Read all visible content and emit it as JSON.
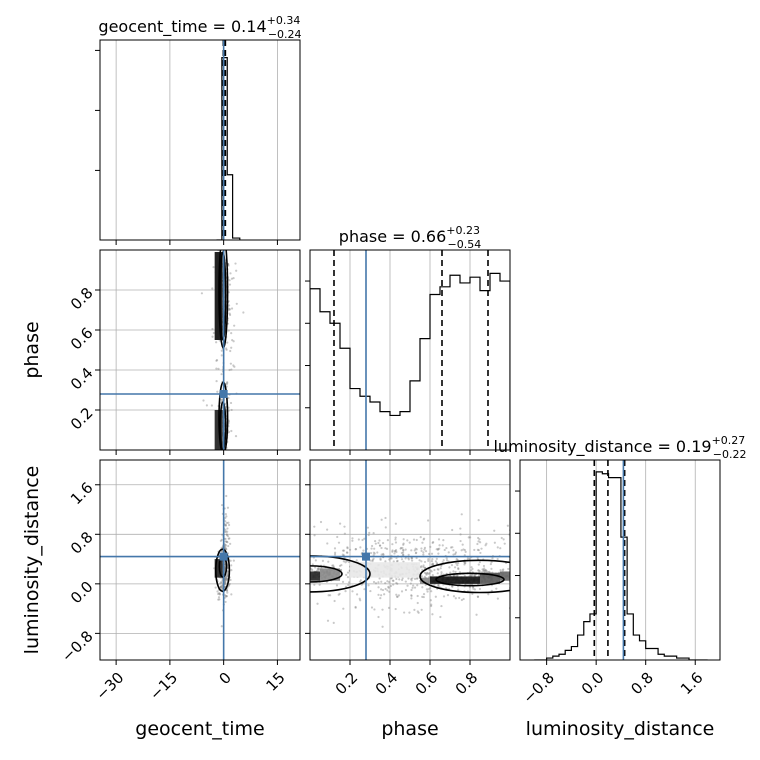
{
  "chart_data": {
    "type": "corner",
    "parameters": [
      "geocent_time",
      "phase",
      "luminosity_distance"
    ],
    "truth": {
      "geocent_time": 0.0,
      "phase": 0.28,
      "luminosity_distance": 0.44,
      "color": "#4477aa"
    },
    "titles": {
      "geocent_time": {
        "prefix": "geocent_time = 0.14",
        "plus": "+0.34",
        "minus": "−0.24"
      },
      "phase": {
        "prefix": "phase = 0.66",
        "plus": "+0.23",
        "minus": "−0.54"
      },
      "luminosity_distance": {
        "prefix": "luminosity_distance = 0.19",
        "plus": "+0.27",
        "minus": "−0.22"
      }
    },
    "axis_labels": {
      "geocent_time": "geocent_time",
      "phase": "phase",
      "luminosity_distance": "luminosity_distance"
    },
    "ranges": {
      "geocent_time": [
        -34.5,
        21.3
      ],
      "phase": [
        0.0,
        1.0
      ],
      "luminosity_distance": [
        -1.23,
        2.0
      ]
    },
    "ticks": {
      "geocent_time": {
        "values": [
          -30,
          -15,
          0,
          15
        ],
        "labels": [
          "−30",
          "−15",
          "0",
          "15"
        ]
      },
      "phase": {
        "values": [
          0.2,
          0.4,
          0.6,
          0.8
        ],
        "labels": [
          "0.2",
          "0.4",
          "0.6",
          "0.8"
        ]
      },
      "luminosity_distance": {
        "values": [
          -0.8,
          0.0,
          0.8,
          1.6
        ],
        "labels": [
          "−0.8",
          "0.0",
          "0.8",
          "1.6"
        ]
      }
    },
    "quantile_lines": {
      "geocent_time": [
        -0.1,
        0.14,
        0.48
      ],
      "phase": [
        0.12,
        0.66,
        0.89
      ],
      "luminosity_distance": [
        -0.03,
        0.19,
        0.46
      ]
    },
    "histograms": {
      "geocent_time": {
        "edges": [
          -2.0,
          -0.5,
          1.0,
          2.5,
          4.5
        ],
        "counts": [
          0.0,
          0.95,
          0.34,
          0.01
        ]
      },
      "phase": {
        "edges": [
          0.0,
          0.05,
          0.1,
          0.15,
          0.2,
          0.25,
          0.3,
          0.35,
          0.4,
          0.45,
          0.5,
          0.55,
          0.6,
          0.65,
          0.7,
          0.75,
          0.8,
          0.85,
          0.9,
          0.95,
          1.0
        ],
        "counts": [
          0.84,
          0.72,
          0.66,
          0.53,
          0.32,
          0.28,
          0.25,
          0.2,
          0.18,
          0.2,
          0.36,
          0.58,
          0.81,
          0.85,
          0.91,
          0.87,
          0.9,
          0.83,
          0.92,
          0.88
        ]
      },
      "luminosity_distance": {
        "edges": [
          -1.0,
          -0.9,
          -0.8,
          -0.7,
          -0.6,
          -0.5,
          -0.4,
          -0.3,
          -0.2,
          -0.1,
          0.0,
          0.1,
          0.2,
          0.3,
          0.4,
          0.5,
          0.6,
          0.7,
          0.8,
          0.9,
          1.0,
          1.1,
          1.2,
          1.3,
          1.4,
          1.5,
          1.6,
          1.7,
          1.8
        ],
        "counts": [
          0.0,
          0.0,
          0.01,
          0.02,
          0.03,
          0.05,
          0.07,
          0.13,
          0.2,
          0.24,
          0.98,
          0.97,
          0.95,
          0.95,
          0.64,
          0.24,
          0.13,
          0.1,
          0.06,
          0.06,
          0.03,
          0.02,
          0.02,
          0.01,
          0.01,
          0.0,
          0.0,
          0.0
        ]
      }
    },
    "scatter": {
      "phase_vs_geocent_time": {
        "clusters": [
          {
            "x": 0.2,
            "y": 0.75,
            "sx": 0.7,
            "sy": 0.12,
            "n": 220
          },
          {
            "x": 0.2,
            "y": 0.12,
            "sx": 0.7,
            "sy": 0.09,
            "n": 170
          },
          {
            "x": 0.2,
            "y": 0.5,
            "sx": 2.2,
            "sy": 0.28,
            "n": 90
          }
        ],
        "contours": [
          {
            "cx": -0.2,
            "cy": 0.77,
            "rx": 0.75,
            "ry": 0.22
          },
          {
            "cx": -0.1,
            "cy": 0.79,
            "rx": 1.2,
            "ry": 0.28
          },
          {
            "cx": -0.2,
            "cy": 0.12,
            "rx": 0.75,
            "ry": 0.12
          },
          {
            "cx": -0.1,
            "cy": 0.16,
            "rx": 1.2,
            "ry": 0.18
          }
        ]
      },
      "luminosity_distance_vs_geocent_time": {
        "clusters": [
          {
            "x": 0.0,
            "y": 0.2,
            "sx": 0.9,
            "sy": 0.22,
            "n": 260
          },
          {
            "x": 0.4,
            "y": 0.6,
            "sx": 0.5,
            "sy": 0.35,
            "n": 80
          }
        ],
        "contours": [
          {
            "cx": -0.2,
            "cy": 0.28,
            "rx": 1.0,
            "ry": 0.17
          },
          {
            "cx": -0.3,
            "cy": 0.22,
            "rx": 1.9,
            "ry": 0.34
          }
        ]
      },
      "luminosity_distance_vs_phase": {
        "clusters": [
          {
            "x": 0.5,
            "y": 0.25,
            "sx": 0.3,
            "sy": 0.3,
            "n": 700
          },
          {
            "x": 0.05,
            "y": 0.17,
            "sx": 0.05,
            "sy": 0.06,
            "n": 90
          },
          {
            "x": 0.72,
            "y": 0.06,
            "sx": 0.07,
            "sy": 0.06,
            "n": 160
          },
          {
            "x": 0.9,
            "y": 0.14,
            "sx": 0.06,
            "sy": 0.06,
            "n": 120
          }
        ],
        "contours": [
          {
            "cx": 0.0,
            "cy": 0.16,
            "rx": 0.16,
            "ry": 0.13
          },
          {
            "cx": 0.0,
            "cy": 0.16,
            "rx": 0.3,
            "ry": 0.29
          },
          {
            "cx": 0.8,
            "cy": 0.07,
            "rx": 0.17,
            "ry": 0.1
          },
          {
            "cx": 0.85,
            "cy": 0.12,
            "rx": 0.3,
            "ry": 0.26
          }
        ]
      }
    },
    "grid": true,
    "legend": "none"
  }
}
